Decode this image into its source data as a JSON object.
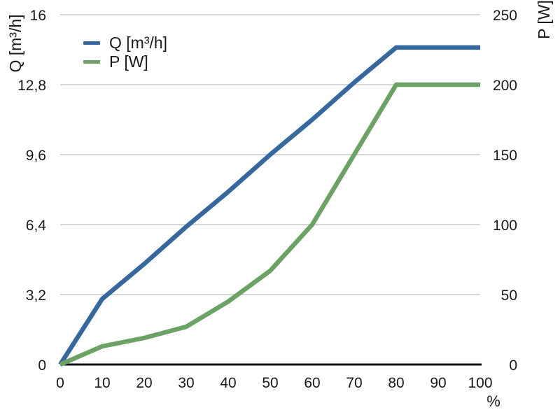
{
  "chart_data": {
    "type": "line",
    "x": [
      0,
      10,
      20,
      30,
      40,
      50,
      60,
      70,
      80,
      90,
      100
    ],
    "series": [
      {
        "name": "Q [m³/h]",
        "axis": "left",
        "color": "#36689e",
        "values": [
          0,
          3.0,
          4.6,
          6.3,
          7.9,
          9.6,
          11.2,
          12.9,
          14.5,
          14.5,
          14.5
        ]
      },
      {
        "name": "P [W]",
        "axis": "right",
        "color": "#6ca265",
        "values": [
          0,
          13,
          19,
          27,
          45,
          67,
          100,
          150,
          200,
          200,
          200
        ]
      }
    ],
    "left_axis": {
      "label": "Q [m³/h]",
      "range": [
        0,
        16
      ],
      "ticks": [
        "0",
        "3,2",
        "6,4",
        "9,6",
        "12,8",
        "16"
      ]
    },
    "right_axis": {
      "label": "P [W]",
      "range": [
        0,
        250
      ],
      "ticks": [
        "0",
        "50",
        "100",
        "150",
        "200",
        "250"
      ]
    },
    "x_axis": {
      "label": "%",
      "range": [
        0,
        100
      ],
      "ticks": [
        "0",
        "10",
        "20",
        "30",
        "40",
        "50",
        "60",
        "70",
        "80",
        "90",
        "100"
      ]
    },
    "grid": true,
    "legend_position": "top-left"
  },
  "legend": {
    "items": [
      {
        "label": "Q [m³/h]",
        "color": "#36689e"
      },
      {
        "label": "P [W]",
        "color": "#6ca265"
      }
    ]
  },
  "colors": {
    "line_q": "#36689e",
    "line_p": "#6ca265",
    "gridline": "#c9c9c9",
    "axis_line": "#111111",
    "text": "#1a1a1a",
    "background": "#ffffff"
  }
}
